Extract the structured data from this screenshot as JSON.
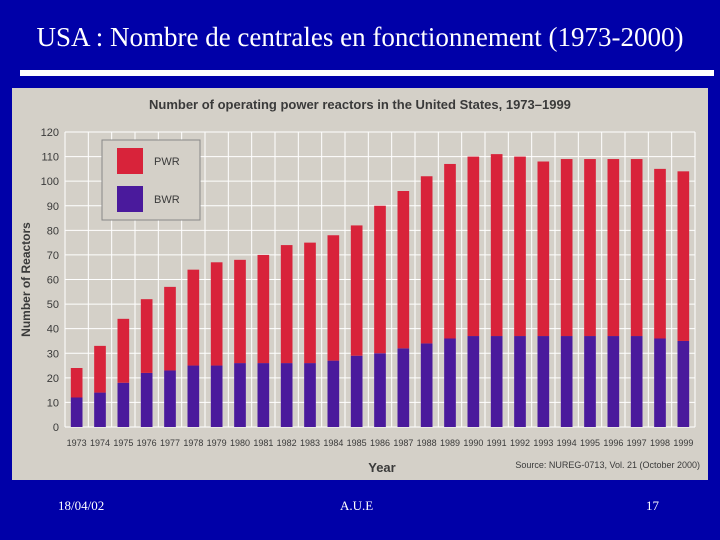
{
  "slide": {
    "title": "USA : Nombre de centrales en fonctionnement  (1973-2000)",
    "footer_date": "18/04/02",
    "footer_center": "A.U.E",
    "page_number": "17"
  },
  "colors": {
    "slide_bg": "#0000a8",
    "panel_bg": "#d4d0c8",
    "pwr": "#d8233a",
    "bwr": "#4a1a9c",
    "grid": "#ffffff",
    "text": "#3a3a3a"
  },
  "chart_data": {
    "type": "bar",
    "stacked": true,
    "title": "Number of operating power reactors in the United States, 1973–1999",
    "xlabel": "Year",
    "ylabel": "Number of Reactors",
    "source": "Source: NUREG-0713, Vol. 21 (October 2000)",
    "ylim": [
      0,
      120
    ],
    "yticks": [
      0,
      10,
      20,
      30,
      40,
      50,
      60,
      70,
      80,
      90,
      100,
      110,
      120
    ],
    "grid": true,
    "legend_position": "top-left",
    "categories": [
      "1973",
      "1974",
      "1975",
      "1976",
      "1977",
      "1978",
      "1979",
      "1980",
      "1981",
      "1982",
      "1983",
      "1984",
      "1985",
      "1986",
      "1987",
      "1988",
      "1989",
      "1990",
      "1991",
      "1992",
      "1993",
      "1994",
      "1995",
      "1996",
      "1997",
      "1998",
      "1999"
    ],
    "series": [
      {
        "name": "BWR",
        "values": [
          12,
          14,
          18,
          22,
          23,
          25,
          25,
          26,
          26,
          26,
          26,
          27,
          29,
          30,
          32,
          34,
          36,
          37,
          37,
          37,
          37,
          37,
          37,
          37,
          37,
          36,
          35
        ]
      },
      {
        "name": "PWR",
        "values": [
          12,
          19,
          26,
          30,
          34,
          39,
          42,
          42,
          44,
          48,
          49,
          51,
          53,
          60,
          64,
          68,
          71,
          73,
          74,
          73,
          71,
          72,
          72,
          72,
          72,
          69,
          69
        ]
      }
    ]
  }
}
